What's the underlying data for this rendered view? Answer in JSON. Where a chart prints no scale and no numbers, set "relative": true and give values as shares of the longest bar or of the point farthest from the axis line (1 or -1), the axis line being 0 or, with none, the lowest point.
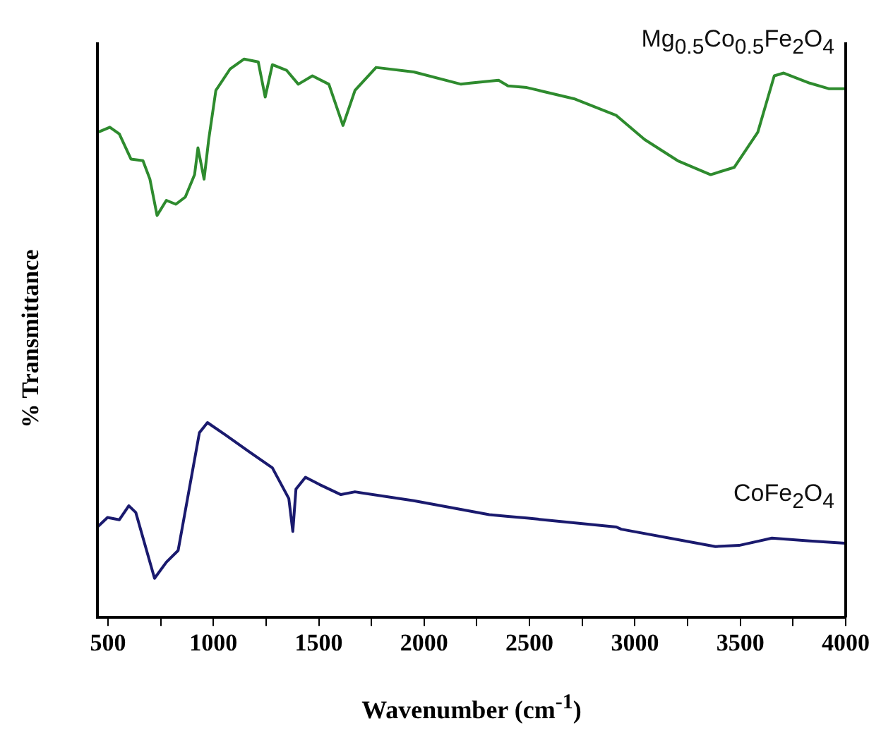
{
  "chart_data": {
    "type": "line",
    "relative": true,
    "xlabel": "Wavenumber (cm$^{-1}$)",
    "ylabel": "% Transmittance",
    "xlim": [
      450,
      4000
    ],
    "xticks": [
      500,
      {
        "value": 750,
        "label": null
      },
      1000,
      {
        "value": 1250,
        "label": null
      },
      1500,
      {
        "value": 1750,
        "label": null
      },
      2000,
      {
        "value": 2250,
        "label": null
      },
      2500,
      {
        "value": 2750,
        "label": null
      },
      3000,
      {
        "value": 3250,
        "label": null
      },
      3500,
      {
        "value": 3750,
        "label": null
      },
      4000
    ],
    "grid": false,
    "legend": false,
    "marker": "none",
    "line_style": "solid",
    "series": [
      {
        "name": "Mg$_{0.5}$Co$_{0.5}$Fe$_{2}$O$_{4}$",
        "color": "#2e8b2e",
        "x": [
          453,
          509,
          554,
          609,
          666,
          699,
          733,
          777,
          822,
          867,
          911,
          927,
          956,
          978,
          1012,
          1079,
          1146,
          1213,
          1246,
          1280,
          1347,
          1403,
          1470,
          1548,
          1615,
          1672,
          1772,
          1951,
          2175,
          2219,
          2353,
          2398,
          2487,
          2711,
          2912,
          3046,
          3203,
          3359,
          3471,
          3583,
          3661,
          3706,
          3829,
          3919,
          3997
        ],
        "values": [
          0.869,
          0.878,
          0.866,
          0.821,
          0.818,
          0.785,
          0.72,
          0.747,
          0.74,
          0.753,
          0.793,
          0.841,
          0.785,
          0.856,
          0.944,
          0.982,
          1,
          0.995,
          0.932,
          0.99,
          0.98,
          0.955,
          0.97,
          0.955,
          0.881,
          0.944,
          0.985,
          0.977,
          0.955,
          0.957,
          0.962,
          0.952,
          0.949,
          0.929,
          0.899,
          0.856,
          0.818,
          0.793,
          0.806,
          0.869,
          0.97,
          0.975,
          0.957,
          0.947,
          0.947
        ]
      },
      {
        "name": "CoFe$_{2}$O$_{4}$",
        "color": "#1a1a6e",
        "x": [
          450,
          498,
          554,
          599,
          632,
          721,
          777,
          833,
          934,
          972,
          1057,
          1169,
          1280,
          1358,
          1377,
          1392,
          1437,
          1504,
          1605,
          1672,
          1951,
          2309,
          2398,
          2487,
          2912,
          2935,
          3382,
          3494,
          3650,
          3829,
          3997
        ],
        "values": [
          0.162,
          0.179,
          0.175,
          0.2,
          0.188,
          0.07,
          0.099,
          0.12,
          0.331,
          0.349,
          0.327,
          0.297,
          0.268,
          0.213,
          0.154,
          0.23,
          0.251,
          0.238,
          0.22,
          0.225,
          0.209,
          0.184,
          0.181,
          0.178,
          0.162,
          0.158,
          0.127,
          0.129,
          0.142,
          0.137,
          0.133
        ]
      }
    ]
  }
}
